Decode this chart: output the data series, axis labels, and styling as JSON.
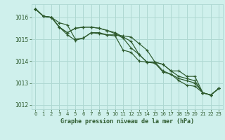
{
  "bg_color": "#cff0ec",
  "grid_color": "#aed8d2",
  "line_color": "#2d5a2d",
  "title": "Graphe pression niveau de la mer (hPa)",
  "xlim": [
    -0.5,
    23.5
  ],
  "ylim": [
    1011.8,
    1016.6
  ],
  "yticks": [
    1012,
    1013,
    1014,
    1015,
    1016
  ],
  "xticks": [
    0,
    1,
    2,
    3,
    4,
    5,
    6,
    7,
    8,
    9,
    10,
    11,
    12,
    13,
    14,
    15,
    16,
    17,
    18,
    19,
    20,
    21,
    22,
    23
  ],
  "series": [
    [
      1016.38,
      1016.05,
      1016.0,
      1015.75,
      1015.65,
      1015.0,
      1015.05,
      1015.3,
      1015.25,
      1015.2,
      1015.2,
      1015.15,
      1015.1,
      1014.8,
      1014.5,
      1013.95,
      1013.85,
      1013.55,
      1013.55,
      1013.3,
      1013.3,
      1012.55,
      1012.45,
      1012.75
    ],
    [
      1016.38,
      1016.05,
      1016.0,
      1015.55,
      1015.3,
      1015.5,
      1015.55,
      1015.55,
      1015.5,
      1015.4,
      1015.3,
      1015.1,
      1014.9,
      1014.3,
      1013.95,
      1013.95,
      1013.85,
      1013.55,
      1013.3,
      1013.2,
      1013.1,
      1012.55,
      1012.45,
      1012.75
    ],
    [
      1016.38,
      1016.05,
      1016.0,
      1015.55,
      1015.3,
      1015.5,
      1015.55,
      1015.55,
      1015.5,
      1015.4,
      1015.25,
      1015.05,
      1014.6,
      1014.3,
      1013.95,
      1013.95,
      1013.55,
      1013.4,
      1013.2,
      1013.1,
      1013.0,
      1012.55,
      1012.45,
      1012.75
    ],
    [
      1016.38,
      1016.05,
      1016.0,
      1015.55,
      1015.2,
      1014.95,
      1015.05,
      1015.3,
      1015.3,
      1015.2,
      1015.15,
      1014.5,
      1014.4,
      1014.0,
      1013.95,
      1013.9,
      1013.5,
      1013.4,
      1013.1,
      1012.9,
      1012.85,
      1012.55,
      1012.45,
      1012.75
    ]
  ]
}
